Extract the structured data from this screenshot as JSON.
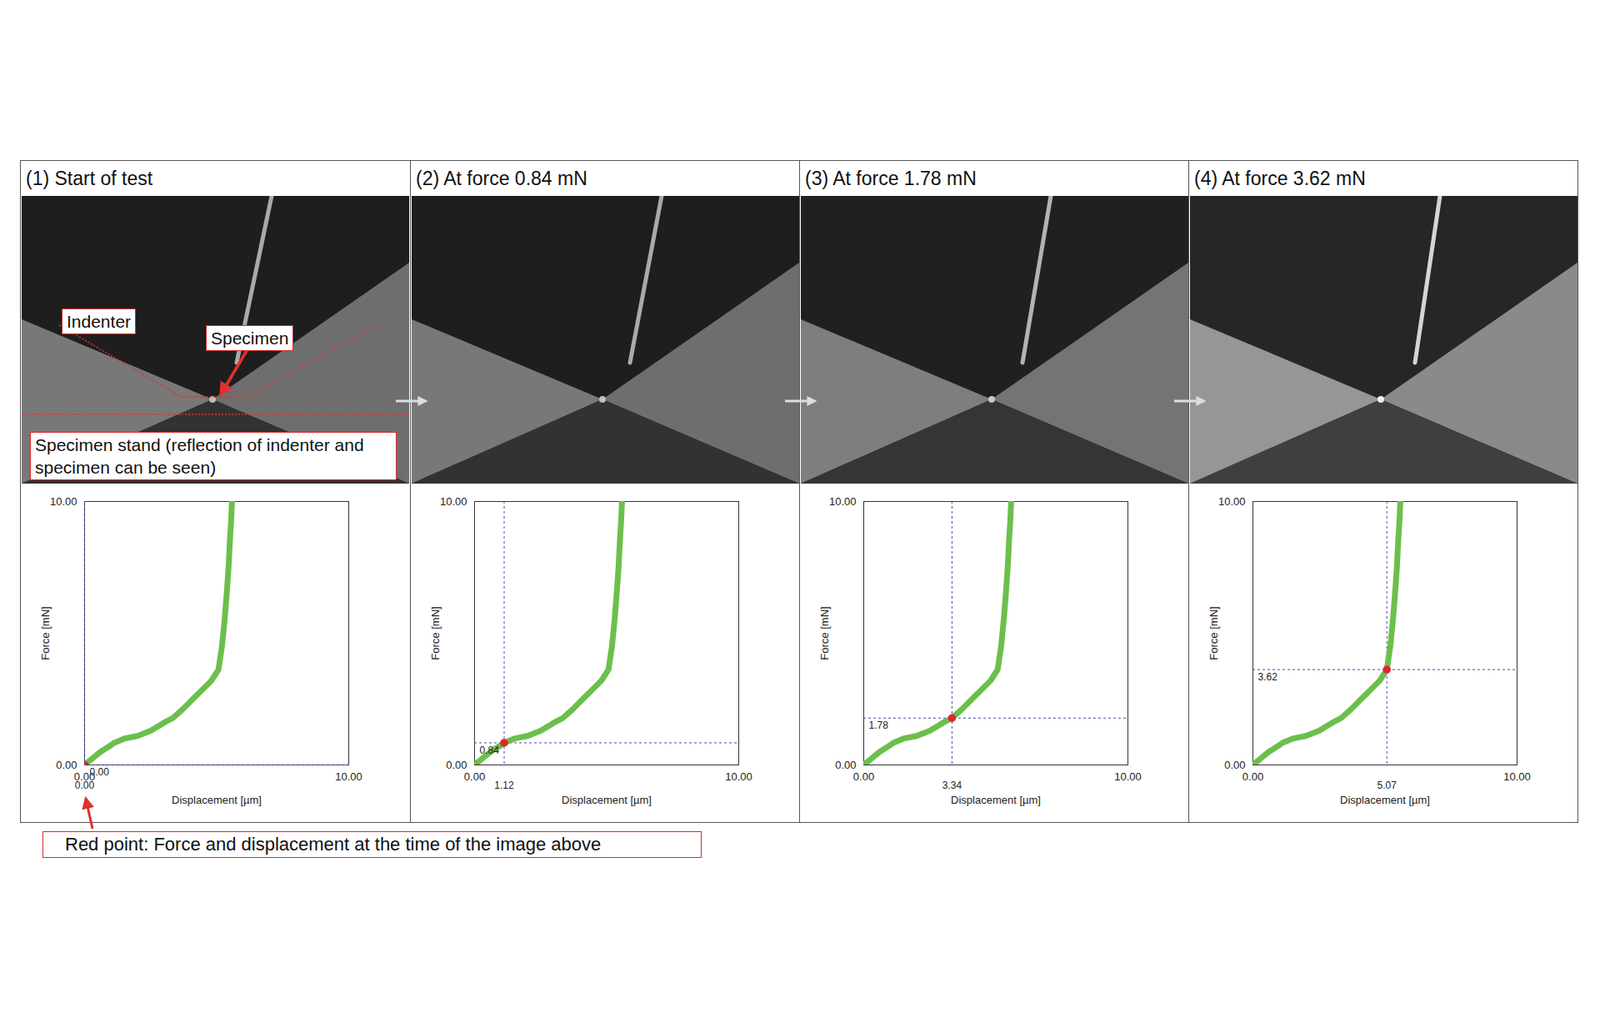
{
  "chart_data": [
    {
      "type": "line",
      "title": "(1) Start of test",
      "annotations": [
        "Indenter",
        "Specimen",
        "Specimen stand (reflection of indenter and specimen can be seen)"
      ],
      "x_label": "Displacement [µm]",
      "y_label": "Force [mN]",
      "x": [
        0,
        0.3,
        0.6,
        1.0,
        1.12,
        1.5,
        2.0,
        2.5,
        3.0,
        3.34,
        3.7,
        4.2,
        4.5,
        4.8,
        5.07,
        5.2,
        5.3,
        5.38,
        5.45,
        5.5,
        5.55,
        5.58
      ],
      "values": [
        0,
        0.25,
        0.5,
        0.75,
        0.84,
        1.0,
        1.1,
        1.3,
        1.6,
        1.78,
        2.1,
        2.6,
        2.9,
        3.2,
        3.62,
        4.5,
        5.5,
        6.5,
        7.5,
        8.5,
        9.3,
        10
      ],
      "color": "#6cbf4c",
      "xlim": [
        0,
        10
      ],
      "ylim": [
        0,
        10
      ],
      "xticks": [
        {
          "value": 0,
          "label": "0.00"
        },
        {
          "value": 10,
          "label": "10.00"
        }
      ],
      "yticks": [
        {
          "value": 0,
          "label": "0.00"
        },
        {
          "value": 10,
          "label": "10.00"
        }
      ],
      "highlight": {
        "x": 0,
        "y": 0,
        "x_label": "0.00",
        "y_label": "0.00",
        "color": "#e0262a"
      }
    },
    {
      "type": "line",
      "title": "(2) At force 0.84 mN",
      "x_label": "Displacement [µm]",
      "y_label": "Force [mN]",
      "x": [
        0,
        0.3,
        0.6,
        1.0,
        1.12,
        1.5,
        2.0,
        2.5,
        3.0,
        3.34,
        3.7,
        4.2,
        4.5,
        4.8,
        5.07,
        5.2,
        5.3,
        5.38,
        5.45,
        5.5,
        5.55,
        5.58
      ],
      "values": [
        0,
        0.25,
        0.5,
        0.75,
        0.84,
        1.0,
        1.1,
        1.3,
        1.6,
        1.78,
        2.1,
        2.6,
        2.9,
        3.2,
        3.62,
        4.5,
        5.5,
        6.5,
        7.5,
        8.5,
        9.3,
        10
      ],
      "color": "#6cbf4c",
      "xlim": [
        0,
        10
      ],
      "ylim": [
        0,
        10
      ],
      "xticks": [
        {
          "value": 0,
          "label": "0.00"
        },
        {
          "value": 10,
          "label": "10.00"
        }
      ],
      "yticks": [
        {
          "value": 0,
          "label": "0.00"
        },
        {
          "value": 10,
          "label": "10.00"
        }
      ],
      "highlight": {
        "x": 1.12,
        "y": 0.84,
        "x_label": "1.12",
        "y_label": "0.84",
        "color": "#e0262a"
      }
    },
    {
      "type": "line",
      "title": "(3) At force 1.78 mN",
      "x_label": "Displacement [µm]",
      "y_label": "Force [mN]",
      "x": [
        0,
        0.3,
        0.6,
        1.0,
        1.12,
        1.5,
        2.0,
        2.5,
        3.0,
        3.34,
        3.7,
        4.2,
        4.5,
        4.8,
        5.07,
        5.2,
        5.3,
        5.38,
        5.45,
        5.5,
        5.55,
        5.58
      ],
      "values": [
        0,
        0.25,
        0.5,
        0.75,
        0.84,
        1.0,
        1.1,
        1.3,
        1.6,
        1.78,
        2.1,
        2.6,
        2.9,
        3.2,
        3.62,
        4.5,
        5.5,
        6.5,
        7.5,
        8.5,
        9.3,
        10
      ],
      "color": "#6cbf4c",
      "xlim": [
        0,
        10
      ],
      "ylim": [
        0,
        10
      ],
      "xticks": [
        {
          "value": 0,
          "label": "0.00"
        },
        {
          "value": 10,
          "label": "10.00"
        }
      ],
      "yticks": [
        {
          "value": 0,
          "label": "0.00"
        },
        {
          "value": 10,
          "label": "10.00"
        }
      ],
      "highlight": {
        "x": 3.34,
        "y": 1.78,
        "x_label": "3.34",
        "y_label": "1.78",
        "color": "#e0262a"
      }
    },
    {
      "type": "line",
      "title": "(4) At force 3.62 mN",
      "x_label": "Displacement [µm]",
      "y_label": "Force [mN]",
      "x": [
        0,
        0.3,
        0.6,
        1.0,
        1.12,
        1.5,
        2.0,
        2.5,
        3.0,
        3.34,
        3.7,
        4.2,
        4.5,
        4.8,
        5.07,
        5.2,
        5.3,
        5.38,
        5.45,
        5.5,
        5.55,
        5.58
      ],
      "values": [
        0,
        0.25,
        0.5,
        0.75,
        0.84,
        1.0,
        1.1,
        1.3,
        1.6,
        1.78,
        2.1,
        2.6,
        2.9,
        3.2,
        3.62,
        4.5,
        5.5,
        6.5,
        7.5,
        8.5,
        9.3,
        10
      ],
      "color": "#6cbf4c",
      "xlim": [
        0,
        10
      ],
      "ylim": [
        0,
        10
      ],
      "xticks": [
        {
          "value": 0,
          "label": "0.00"
        },
        {
          "value": 10,
          "label": "10.00"
        }
      ],
      "yticks": [
        {
          "value": 0,
          "label": "0.00"
        },
        {
          "value": 10,
          "label": "10.00"
        }
      ],
      "highlight": {
        "x": 5.07,
        "y": 3.62,
        "x_label": "5.07",
        "y_label": "3.62",
        "color": "#e0262a"
      }
    }
  ],
  "caption": "Red point: Force and displacement at the time of the image above"
}
